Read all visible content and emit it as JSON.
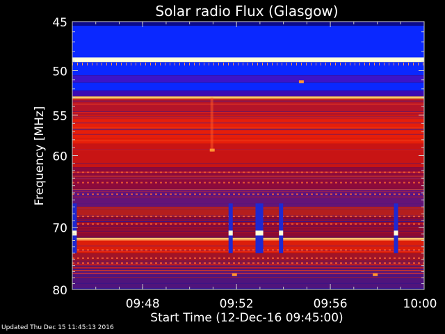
{
  "chart_data": {
    "type": "heatmap",
    "title": "Solar radio Flux (Glasgow)",
    "xlabel": "Start Time (12-Dec-16 09:45:00)",
    "ylabel": "Frequency [MHz]",
    "x_range_minutes": [
      0,
      15
    ],
    "x_ticks": [
      {
        "value": 3,
        "label": "09:48"
      },
      {
        "value": 7,
        "label": "09:52"
      },
      {
        "value": 11,
        "label": "09:56"
      },
      {
        "value": 15,
        "label": "10:00"
      }
    ],
    "y_scale": "log",
    "y_range_mhz": [
      45,
      80
    ],
    "y_ticks": [
      45,
      50,
      55,
      60,
      70,
      80
    ],
    "colormap": [
      "#000000",
      "#1414a0",
      "#0a28ff",
      "#8c0a32",
      "#d21414",
      "#ff2800",
      "#ffb43c",
      "#ffffdc"
    ],
    "rows": [
      {
        "f0": 45.0,
        "f1": 45.4,
        "c": "#0a0a8c"
      },
      {
        "f0": 45.4,
        "f1": 48.6,
        "c": "#0a28ff"
      },
      {
        "f0": 48.6,
        "f1": 49.1,
        "c": "#ffffdc"
      },
      {
        "f0": 49.1,
        "f1": 50.5,
        "c": "#0a28ff"
      },
      {
        "f0": 50.5,
        "f1": 51.3,
        "c": "#3c14c8"
      },
      {
        "f0": 51.3,
        "f1": 52.2,
        "c": "#0a28ff"
      },
      {
        "f0": 52.2,
        "f1": 52.8,
        "c": "#3c0ab4"
      },
      {
        "f0": 52.8,
        "f1": 53.1,
        "c": "#ffc864"
      },
      {
        "f0": 53.1,
        "f1": 55.0,
        "c": "#b41428"
      },
      {
        "f0": 55.0,
        "f1": 58.5,
        "c": "#e61e0a"
      },
      {
        "f0": 58.5,
        "f1": 61.5,
        "c": "#c81414"
      },
      {
        "f0": 61.5,
        "f1": 64.5,
        "c": "#8c0a3c"
      },
      {
        "f0": 64.5,
        "f1": 67.0,
        "c": "#641478"
      },
      {
        "f0": 67.0,
        "f1": 68.5,
        "c": "#b41e1e"
      },
      {
        "f0": 68.5,
        "f1": 71.6,
        "c": "#8c0a32"
      },
      {
        "f0": 71.6,
        "f1": 72.0,
        "c": "#ffd278"
      },
      {
        "f0": 72.0,
        "f1": 74.0,
        "c": "#dc1e0a"
      },
      {
        "f0": 74.0,
        "f1": 76.5,
        "c": "#a01428"
      },
      {
        "f0": 76.5,
        "f1": 80.0,
        "c": "#50147c"
      }
    ],
    "striped_bands_mhz": [
      62.2,
      63.6,
      65.2,
      68.4,
      69.5,
      73.5,
      74.8,
      75.6
    ],
    "bursts": [
      {
        "t": 0.1,
        "f0": 66.5,
        "f1": 74.0
      },
      {
        "t": 6.75,
        "f0": 66.5,
        "f1": 74.0
      },
      {
        "t": 7.9,
        "f0": 66.5,
        "f1": 74.0
      },
      {
        "t": 8.05,
        "f0": 66.5,
        "f1": 74.0
      },
      {
        "t": 8.9,
        "f0": 66.5,
        "f1": 74.0
      },
      {
        "t": 13.8,
        "f0": 66.5,
        "f1": 74.0
      }
    ],
    "spots": [
      {
        "t": 5.95,
        "f": 59.3
      },
      {
        "t": 9.75,
        "f": 51.2
      },
      {
        "t": 6.9,
        "f": 77.5
      },
      {
        "t": 12.9,
        "f": 77.5
      }
    ]
  },
  "footer": "Updated Thu Dec 15 11:45:13 2016"
}
